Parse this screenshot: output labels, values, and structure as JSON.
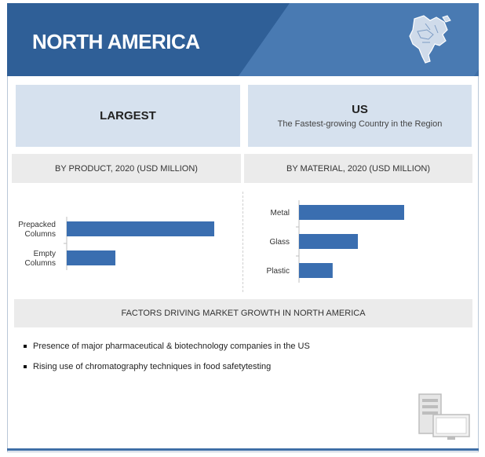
{
  "banner": {
    "title": "NORTH AMERICA",
    "icon": "north-america-map-icon"
  },
  "highlights": {
    "largest_label": "LARGEST",
    "country": "US",
    "country_note": "The Fastest-growing Country in the Region"
  },
  "colors": {
    "bar": "#3a6eb0",
    "banner": "#3e6ea6",
    "panel": "#d6e1ee",
    "header": "#ebebeb"
  },
  "chart_data": [
    {
      "type": "bar",
      "orientation": "horizontal",
      "title": "BY PRODUCT, 2020 (USD MILLION)",
      "categories": [
        [
          "Prepacked",
          "Columns"
        ],
        [
          "Empty",
          "Columns"
        ]
      ],
      "values": [
        100,
        33
      ],
      "value_scale": "relative (no axis printed)"
    },
    {
      "type": "bar",
      "orientation": "horizontal",
      "title": "BY MATERIAL,  2020 (USD MILLION)",
      "categories": [
        "Metal",
        "Glass",
        "Plastic"
      ],
      "values": [
        100,
        56,
        32
      ],
      "value_scale": "relative (no axis printed)"
    }
  ],
  "factors": {
    "title": "FACTORS DRIVING  MARKET GROWTH  IN  NORTH AMERICA",
    "items": [
      "Presence of major pharmaceutical & biotechnology companies in the  US",
      "Rising use of chromatography techniques in food  safetytesting"
    ]
  },
  "decor": {
    "icon": "server-monitor-icon"
  }
}
